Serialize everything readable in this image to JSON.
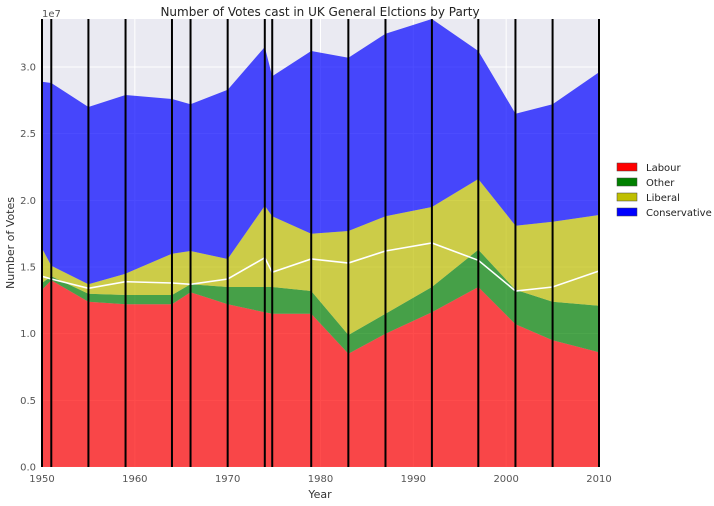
{
  "chart_data": {
    "type": "area",
    "title": "Number of Votes  cast in UK General Elctions by Party",
    "xlabel": "Year",
    "ylabel": "Number of Votes",
    "y_offset_label": "1e7",
    "xlim": [
      1950,
      2010
    ],
    "ylim": [
      0,
      33600000
    ],
    "x_ticks": [
      "1950",
      "1960",
      "1970",
      "1980",
      "1990",
      "2000",
      "2010"
    ],
    "y_ticks": [
      "0.0",
      "0.5",
      "1.0",
      "1.5",
      "2.0",
      "2.5",
      "3.0"
    ],
    "grid": true,
    "stacked": true,
    "legend_position": "right",
    "election_lines": [
      1950,
      1951,
      1955,
      1959,
      1964,
      1966,
      1970,
      1974,
      1974.8,
      1979,
      1983,
      1987,
      1992,
      1997,
      2001,
      2005,
      2010
    ],
    "x": [
      1950,
      1951,
      1955,
      1959,
      1964,
      1966,
      1970,
      1974,
      1974.8,
      1979,
      1983,
      1987,
      1992,
      1997,
      2001,
      2005,
      2010
    ],
    "series": [
      {
        "name": "Labour",
        "color": "#ff0000",
        "values": [
          13300000,
          14000000,
          12400000,
          12200000,
          12200000,
          13100000,
          12200000,
          11600000,
          11500000,
          11500000,
          8500000,
          10000000,
          11600000,
          13500000,
          10700000,
          9500000,
          8600000
        ]
      },
      {
        "name": "Other",
        "color": "#008000",
        "values": [
          500000,
          300000,
          600000,
          700000,
          700000,
          600000,
          1300000,
          1900000,
          2000000,
          1700000,
          1400000,
          1500000,
          1900000,
          2800000,
          2600000,
          2900000,
          3500000
        ]
      },
      {
        "name": "Liberal",
        "color": "#bfbf00",
        "values": [
          2600000,
          800000,
          700000,
          1600000,
          3100000,
          2500000,
          2100000,
          6100000,
          5300000,
          4300000,
          7800000,
          7300000,
          6000000,
          5300000,
          4800000,
          6000000,
          6800000
        ]
      },
      {
        "name": "Conservative",
        "color": "#0000ff",
        "values": [
          12500000,
          13700000,
          13300000,
          13400000,
          11600000,
          11000000,
          12700000,
          11900000,
          10500000,
          13700000,
          13000000,
          13700000,
          14100000,
          9600000,
          8400000,
          8800000,
          10700000
        ]
      }
    ],
    "white_line_values": [
      14300000,
      14100000,
      13400000,
      13900000,
      13800000,
      13700000,
      14100000,
      15700000,
      14600000,
      15600000,
      15300000,
      16200000,
      16800000,
      15500000,
      13200000,
      13500000,
      14700000
    ]
  }
}
